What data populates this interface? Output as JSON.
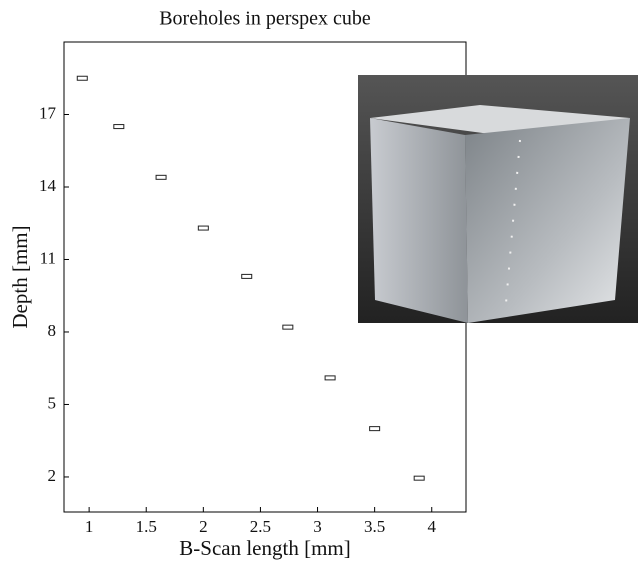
{
  "chart_data": {
    "type": "scatter",
    "title": "Boreholes in perspex cube",
    "xlabel": "B-Scan length [mm]",
    "ylabel": "Depth [mm]",
    "x": [
      0.94,
      1.26,
      1.63,
      2.0,
      2.38,
      2.74,
      3.11,
      3.5,
      3.89
    ],
    "values": [
      18.5,
      16.5,
      14.4,
      12.3,
      10.3,
      8.2,
      6.1,
      4.0,
      1.95
    ],
    "color": "#222222",
    "xlim": [
      0.78,
      4.3
    ],
    "xticks": [
      1,
      1.5,
      2,
      2.5,
      3,
      3.5,
      4
    ],
    "ylim": [
      0.55,
      20
    ],
    "yticks": [
      2,
      5,
      8,
      11,
      14,
      17
    ]
  }
}
